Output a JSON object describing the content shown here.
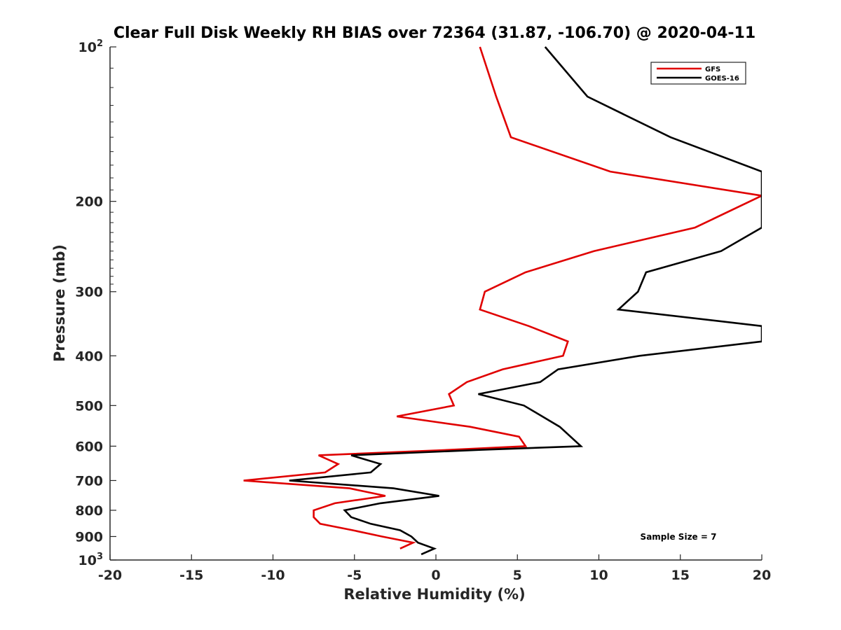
{
  "chart_data": {
    "type": "line",
    "title": "Clear Full Disk Weekly RH BIAS over 72364 (31.87, -106.70) @ 2020-04-11",
    "xlabel": "Relative Humidity (%)",
    "ylabel": "Pressure (mb)",
    "xlim": [
      -20,
      20
    ],
    "ylim": [
      100,
      1000
    ],
    "y_scale": "log",
    "y_reversed": true,
    "grid": false,
    "legend_position": "top-right",
    "x_ticks": [
      -20,
      -15,
      -10,
      -5,
      0,
      5,
      10,
      15,
      20
    ],
    "x_tick_labels": [
      "-20",
      "-15",
      "-10",
      "-5",
      "0",
      "5",
      "10",
      "15",
      "20"
    ],
    "y_ticks": [
      {
        "value": 100,
        "base": "10",
        "exp": "2"
      },
      {
        "value": 200,
        "base": "200",
        "exp": ""
      },
      {
        "value": 300,
        "base": "300",
        "exp": ""
      },
      {
        "value": 400,
        "base": "400",
        "exp": ""
      },
      {
        "value": 500,
        "base": "500",
        "exp": ""
      },
      {
        "value": 600,
        "base": "600",
        "exp": ""
      },
      {
        "value": 700,
        "base": "700",
        "exp": ""
      },
      {
        "value": 800,
        "base": "800",
        "exp": ""
      },
      {
        "value": 900,
        "base": "900",
        "exp": ""
      },
      {
        "value": 1000,
        "base": "10",
        "exp": "3"
      }
    ],
    "series": [
      {
        "name": "GFS",
        "color": "#e00000",
        "points": [
          [
            2.7,
            100
          ],
          [
            3.7,
            125
          ],
          [
            4.6,
            150
          ],
          [
            10.7,
            175
          ],
          [
            20.0,
            195
          ],
          [
            15.9,
            225
          ],
          [
            9.7,
            250
          ],
          [
            5.5,
            275
          ],
          [
            3.0,
            300
          ],
          [
            2.7,
            325
          ],
          [
            5.7,
            350
          ],
          [
            8.1,
            375
          ],
          [
            7.8,
            400
          ],
          [
            4.1,
            425
          ],
          [
            1.9,
            450
          ],
          [
            0.8,
            475
          ],
          [
            1.1,
            500
          ],
          [
            -2.4,
            525
          ],
          [
            2.1,
            550
          ],
          [
            5.1,
            575
          ],
          [
            5.5,
            600
          ],
          [
            0.9,
            610
          ],
          [
            -7.2,
            625
          ],
          [
            -6.0,
            650
          ],
          [
            -6.8,
            675
          ],
          [
            -11.8,
            700
          ],
          [
            -5.3,
            725
          ],
          [
            -3.1,
            750
          ],
          [
            -6.2,
            775
          ],
          [
            -7.5,
            800
          ],
          [
            -7.5,
            825
          ],
          [
            -7.1,
            850
          ],
          [
            -5.1,
            875
          ],
          [
            -3.3,
            900
          ],
          [
            -1.4,
            925
          ],
          [
            -2.2,
            950
          ]
        ]
      },
      {
        "name": "GOES-16",
        "color": "#000000",
        "points": [
          [
            6.7,
            100
          ],
          [
            9.3,
            125
          ],
          [
            14.4,
            150
          ],
          [
            20.0,
            175
          ],
          [
            20.0,
            225
          ],
          [
            17.5,
            250
          ],
          [
            12.9,
            275
          ],
          [
            12.4,
            300
          ],
          [
            11.2,
            325
          ],
          [
            20.0,
            350
          ],
          [
            20.0,
            375
          ],
          [
            12.5,
            400
          ],
          [
            7.5,
            425
          ],
          [
            6.4,
            450
          ],
          [
            2.6,
            475
          ],
          [
            5.4,
            500
          ],
          [
            7.6,
            550
          ],
          [
            8.9,
            600
          ],
          [
            2.8,
            610
          ],
          [
            -5.2,
            625
          ],
          [
            -3.4,
            650
          ],
          [
            -4.0,
            675
          ],
          [
            -9.0,
            700
          ],
          [
            -2.6,
            725
          ],
          [
            0.2,
            750
          ],
          [
            -3.4,
            775
          ],
          [
            -5.6,
            800
          ],
          [
            -5.2,
            825
          ],
          [
            -4.0,
            850
          ],
          [
            -2.2,
            875
          ],
          [
            -1.5,
            900
          ],
          [
            -1.1,
            925
          ],
          [
            -0.1,
            950
          ],
          [
            -0.9,
            975
          ]
        ]
      }
    ],
    "annotation": "Sample Size = 7"
  }
}
